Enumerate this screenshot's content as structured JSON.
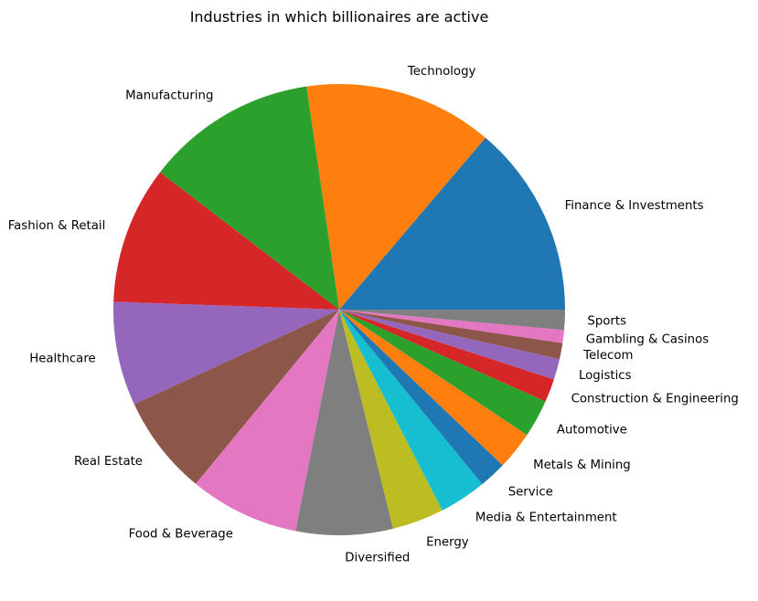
{
  "chart_data": {
    "type": "pie",
    "title": "Industries in which billionaires are active",
    "categories": [
      "Finance & Investments",
      "Technology",
      "Manufacturing",
      "Fashion & Retail",
      "Healthcare",
      "Real Estate",
      "Food & Beverage",
      "Diversified",
      "Energy",
      "Media & Entertainment",
      "Service",
      "Metals & Mining",
      "Automotive",
      "Construction & Engineering",
      "Logistics",
      "Telecom",
      "Gambling & Casinos",
      "Sports"
    ],
    "values": [
      372,
      365,
      331,
      266,
      201,
      193,
      212,
      187,
      100,
      91,
      53,
      74,
      73,
      45,
      40,
      31,
      25,
      39
    ],
    "colors": [
      "#1f77b4",
      "#ff7f0e",
      "#2ca02c",
      "#d62728",
      "#9467bd",
      "#8c564b",
      "#e377c2",
      "#7f7f7f",
      "#bcbd22",
      "#17becf",
      "#1f77b4",
      "#ff7f0e",
      "#2ca02c",
      "#d62728",
      "#9467bd",
      "#8c564b",
      "#e377c2",
      "#7f7f7f"
    ],
    "start_angle_deg": 0,
    "direction": "counterclockwise",
    "legend": "none"
  }
}
